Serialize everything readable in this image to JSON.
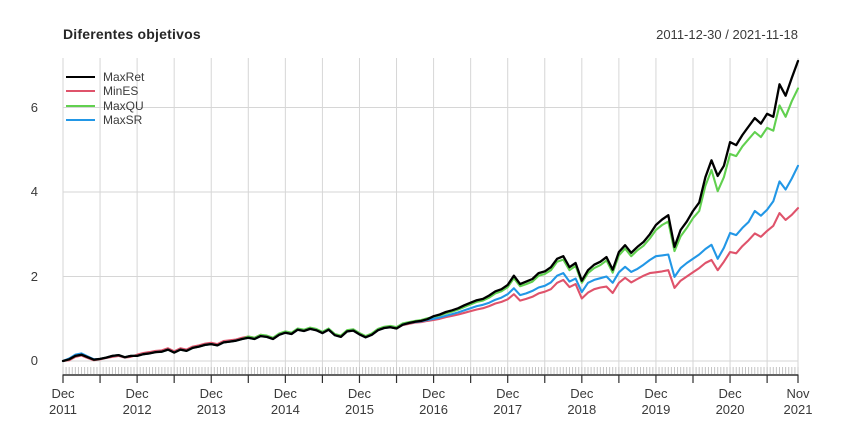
{
  "header": {
    "title": "Diferentes objetivos",
    "date_range": "2011-12-30 / 2021-11-18"
  },
  "colors": {
    "grid": "#d6d6d6",
    "axis_line": "#2f2f2f",
    "minor_tick": "#c4c4c4",
    "tick_label": "#3a3a3a"
  },
  "chart_data": {
    "type": "line",
    "title": "Diferentes objetivos",
    "subtitle_right": "2011-12-30 / 2021-11-18",
    "x_unit": "months since 2011-12",
    "x_range": [
      "2011-12-30",
      "2021-11-18"
    ],
    "months_total": 120,
    "x_gridline_step_months": 6,
    "grid": "light gray; vertical every 6 months; horizontal at y ticks",
    "legend_position": "top-left",
    "y_ticks": [
      0,
      2,
      4,
      6
    ],
    "ylim": [
      0,
      7.17
    ],
    "x_labels": [
      {
        "i": 0,
        "line1": "Dec",
        "line2": "2011"
      },
      {
        "i": 12,
        "line1": "Dec",
        "line2": "2012"
      },
      {
        "i": 24,
        "line1": "Dec",
        "line2": "2013"
      },
      {
        "i": 36,
        "line1": "Dec",
        "line2": "2014"
      },
      {
        "i": 48,
        "line1": "Dec",
        "line2": "2015"
      },
      {
        "i": 60,
        "line1": "Dec",
        "line2": "2016"
      },
      {
        "i": 72,
        "line1": "Dec",
        "line2": "2017"
      },
      {
        "i": 84,
        "line1": "Dec",
        "line2": "2018"
      },
      {
        "i": 96,
        "line1": "Dec",
        "line2": "2019"
      },
      {
        "i": 108,
        "line1": "Dec",
        "line2": "2020"
      },
      {
        "i": 119,
        "line1": "Nov",
        "line2": "2021"
      }
    ],
    "series": [
      {
        "name": "MaxRet",
        "color": "#000000",
        "values": [
          0.0,
          0.04,
          0.12,
          0.15,
          0.09,
          0.03,
          0.05,
          0.08,
          0.12,
          0.14,
          0.09,
          0.12,
          0.12,
          0.16,
          0.18,
          0.21,
          0.22,
          0.27,
          0.2,
          0.27,
          0.24,
          0.31,
          0.34,
          0.38,
          0.4,
          0.37,
          0.44,
          0.46,
          0.48,
          0.52,
          0.55,
          0.52,
          0.59,
          0.57,
          0.52,
          0.62,
          0.67,
          0.64,
          0.74,
          0.71,
          0.76,
          0.73,
          0.66,
          0.74,
          0.61,
          0.57,
          0.7,
          0.72,
          0.63,
          0.56,
          0.62,
          0.73,
          0.78,
          0.8,
          0.77,
          0.86,
          0.9,
          0.93,
          0.95,
          0.99,
          1.06,
          1.1,
          1.16,
          1.2,
          1.25,
          1.32,
          1.38,
          1.44,
          1.47,
          1.55,
          1.65,
          1.7,
          1.8,
          2.02,
          1.82,
          1.88,
          1.94,
          2.08,
          2.12,
          2.22,
          2.42,
          2.48,
          2.22,
          2.32,
          1.9,
          2.15,
          2.28,
          2.35,
          2.46,
          2.16,
          2.58,
          2.74,
          2.56,
          2.7,
          2.82,
          3.0,
          3.22,
          3.35,
          3.45,
          2.7,
          3.1,
          3.3,
          3.55,
          3.75,
          4.35,
          4.75,
          4.38,
          4.62,
          5.18,
          5.11,
          5.35,
          5.55,
          5.75,
          5.62,
          5.85,
          5.78,
          6.55,
          6.28,
          6.7,
          7.1
        ]
      },
      {
        "name": "MinES",
        "color": "#DF536B",
        "values": [
          0.0,
          0.02,
          0.1,
          0.13,
          0.07,
          0.02,
          0.04,
          0.07,
          0.1,
          0.12,
          0.08,
          0.1,
          0.15,
          0.19,
          0.21,
          0.24,
          0.25,
          0.3,
          0.23,
          0.3,
          0.27,
          0.34,
          0.37,
          0.41,
          0.43,
          0.4,
          0.47,
          0.49,
          0.51,
          0.55,
          0.58,
          0.55,
          0.62,
          0.59,
          0.54,
          0.64,
          0.68,
          0.65,
          0.75,
          0.72,
          0.77,
          0.74,
          0.67,
          0.75,
          0.62,
          0.58,
          0.71,
          0.73,
          0.64,
          0.57,
          0.63,
          0.74,
          0.79,
          0.8,
          0.77,
          0.85,
          0.88,
          0.91,
          0.92,
          0.95,
          0.97,
          1.0,
          1.04,
          1.07,
          1.1,
          1.14,
          1.18,
          1.22,
          1.25,
          1.3,
          1.36,
          1.4,
          1.46,
          1.58,
          1.43,
          1.47,
          1.52,
          1.6,
          1.64,
          1.7,
          1.85,
          1.92,
          1.75,
          1.82,
          1.48,
          1.62,
          1.7,
          1.74,
          1.76,
          1.61,
          1.85,
          1.97,
          1.86,
          1.94,
          2.02,
          2.08,
          2.1,
          2.12,
          2.15,
          1.73,
          1.9,
          2.0,
          2.1,
          2.2,
          2.32,
          2.39,
          2.15,
          2.35,
          2.58,
          2.55,
          2.72,
          2.86,
          3.02,
          2.94,
          3.08,
          3.2,
          3.5,
          3.34,
          3.46,
          3.62
        ]
      },
      {
        "name": "MaxQU",
        "color": "#61D04F",
        "values": [
          0.0,
          0.04,
          0.12,
          0.15,
          0.09,
          0.03,
          0.05,
          0.08,
          0.12,
          0.14,
          0.09,
          0.12,
          0.12,
          0.16,
          0.18,
          0.21,
          0.22,
          0.27,
          0.2,
          0.27,
          0.24,
          0.31,
          0.34,
          0.38,
          0.4,
          0.37,
          0.44,
          0.46,
          0.48,
          0.52,
          0.58,
          0.55,
          0.62,
          0.6,
          0.55,
          0.65,
          0.7,
          0.67,
          0.77,
          0.74,
          0.79,
          0.76,
          0.69,
          0.77,
          0.64,
          0.6,
          0.73,
          0.75,
          0.66,
          0.59,
          0.65,
          0.76,
          0.81,
          0.83,
          0.8,
          0.89,
          0.92,
          0.95,
          0.97,
          1.01,
          1.04,
          1.08,
          1.13,
          1.17,
          1.22,
          1.28,
          1.34,
          1.4,
          1.43,
          1.5,
          1.6,
          1.65,
          1.75,
          1.96,
          1.77,
          1.82,
          1.88,
          2.02,
          2.06,
          2.15,
          2.35,
          2.4,
          2.15,
          2.25,
          1.85,
          2.08,
          2.2,
          2.27,
          2.38,
          2.09,
          2.5,
          2.66,
          2.48,
          2.62,
          2.73,
          2.9,
          3.1,
          3.22,
          3.3,
          2.6,
          2.95,
          3.15,
          3.38,
          3.55,
          4.15,
          4.52,
          4.02,
          4.35,
          4.9,
          4.85,
          5.08,
          5.25,
          5.42,
          5.3,
          5.52,
          5.45,
          6.05,
          5.78,
          6.15,
          6.45
        ]
      },
      {
        "name": "MaxSR",
        "color": "#2297E6",
        "values": [
          0.0,
          0.06,
          0.15,
          0.18,
          0.11,
          0.04,
          0.05,
          0.08,
          0.12,
          0.14,
          0.09,
          0.12,
          0.12,
          0.16,
          0.18,
          0.21,
          0.22,
          0.27,
          0.2,
          0.27,
          0.24,
          0.31,
          0.34,
          0.38,
          0.4,
          0.37,
          0.44,
          0.46,
          0.48,
          0.52,
          0.55,
          0.52,
          0.59,
          0.57,
          0.52,
          0.62,
          0.67,
          0.64,
          0.74,
          0.71,
          0.76,
          0.73,
          0.66,
          0.74,
          0.61,
          0.57,
          0.7,
          0.72,
          0.63,
          0.56,
          0.62,
          0.73,
          0.78,
          0.8,
          0.77,
          0.86,
          0.9,
          0.92,
          0.94,
          0.97,
          1.0,
          1.03,
          1.07,
          1.11,
          1.15,
          1.2,
          1.25,
          1.3,
          1.33,
          1.38,
          1.45,
          1.5,
          1.58,
          1.72,
          1.56,
          1.6,
          1.66,
          1.74,
          1.78,
          1.86,
          2.02,
          2.08,
          1.88,
          1.95,
          1.63,
          1.85,
          1.92,
          1.96,
          2.0,
          1.85,
          2.1,
          2.23,
          2.11,
          2.18,
          2.28,
          2.39,
          2.48,
          2.5,
          2.52,
          1.99,
          2.2,
          2.32,
          2.42,
          2.52,
          2.65,
          2.75,
          2.42,
          2.68,
          3.03,
          2.98,
          3.15,
          3.29,
          3.55,
          3.44,
          3.58,
          3.78,
          4.25,
          4.06,
          4.32,
          4.62
        ]
      }
    ]
  }
}
